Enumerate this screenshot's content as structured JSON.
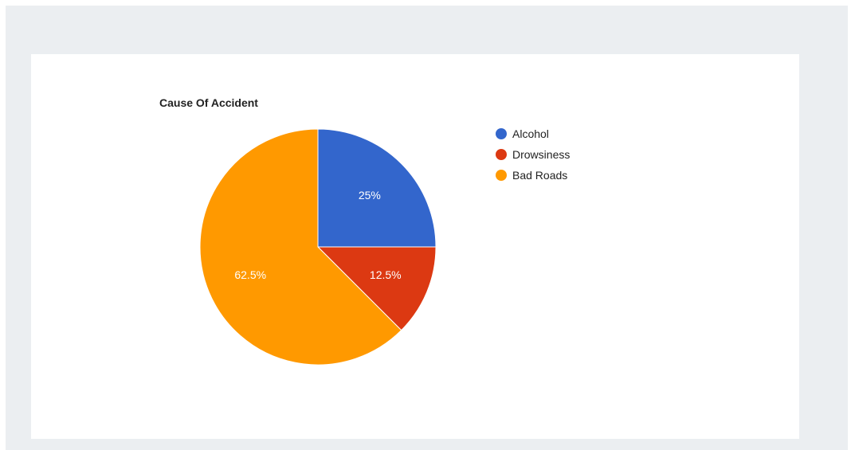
{
  "chart_data": {
    "type": "pie",
    "title": "Cause Of Accident",
    "legend_position": "right",
    "slices": [
      {
        "label": "Alcohol",
        "value": 25,
        "percent_label": "25%",
        "color": "#3366cc"
      },
      {
        "label": "Drowsiness",
        "value": 12.5,
        "percent_label": "12.5%",
        "color": "#dc3912"
      },
      {
        "label": "Bad Roads",
        "value": 62.5,
        "percent_label": "62.5%",
        "color": "#ff9900"
      }
    ]
  },
  "colors": {
    "background": "#ebeef1",
    "panel": "#ffffff"
  }
}
